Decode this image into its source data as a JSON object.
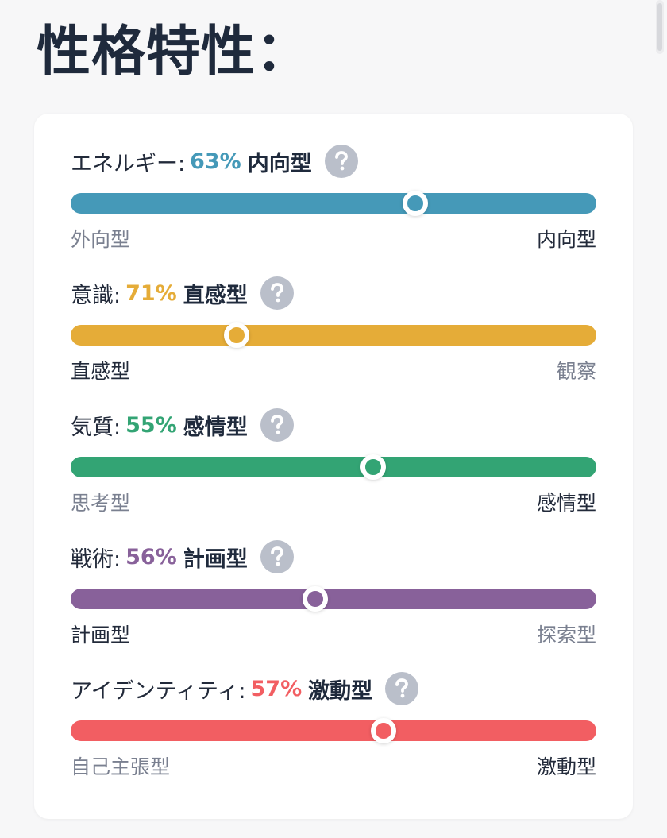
{
  "page": {
    "title": "性格特性："
  },
  "traits": [
    {
      "label": "エネルギー:",
      "percent": "63%",
      "result": "内向型",
      "color": "#4599b8",
      "knob_fraction": 0.655,
      "left_pole": "外向型",
      "right_pole": "内向型",
      "active_side": "right"
    },
    {
      "label": "意識:",
      "percent": "71%",
      "result": "直感型",
      "color": "#e5ac38",
      "knob_fraction": 0.315,
      "left_pole": "直感型",
      "right_pole": "観察",
      "active_side": "left"
    },
    {
      "label": "気質:",
      "percent": "55%",
      "result": "感情型",
      "color": "#33a474",
      "knob_fraction": 0.575,
      "left_pole": "思考型",
      "right_pole": "感情型",
      "active_side": "right"
    },
    {
      "label": "戦術:",
      "percent": "56%",
      "result": "計画型",
      "color": "#88619a",
      "knob_fraction": 0.465,
      "left_pole": "計画型",
      "right_pole": "探索型",
      "active_side": "left"
    },
    {
      "label": "アイデンティティ:",
      "percent": "57%",
      "result": "激動型",
      "color": "#f25e62",
      "knob_fraction": 0.595,
      "left_pole": "自己主張型",
      "right_pole": "激動型",
      "active_side": "right"
    }
  ],
  "icons": {
    "help": "help-icon"
  }
}
